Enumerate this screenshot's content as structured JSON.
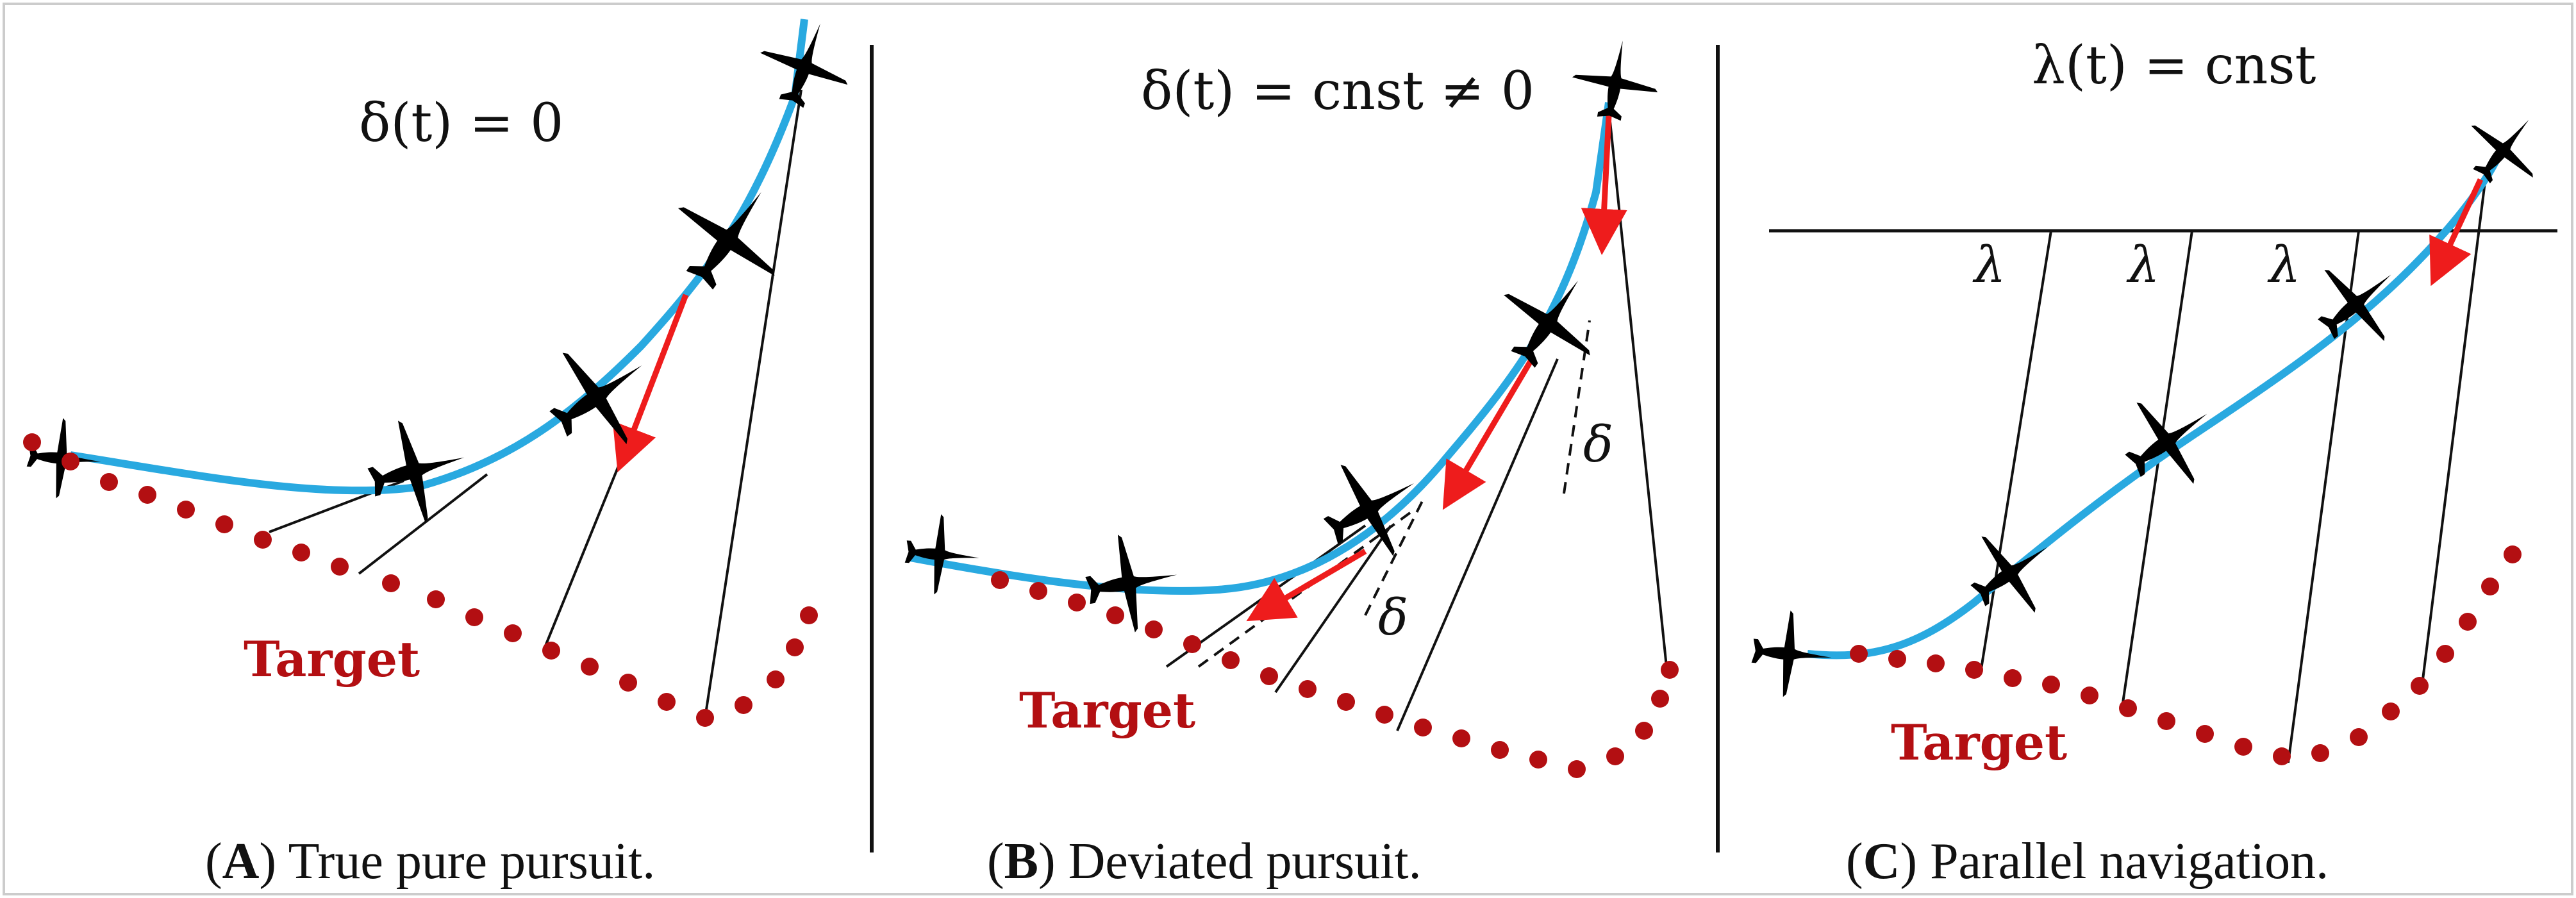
{
  "colors": {
    "trajectory": "#29a9e0",
    "target_dots": "#b30f12",
    "velocity_arrow": "#ee1c1c",
    "ink": "#111111",
    "divider": "#111111"
  },
  "icons": {
    "aircraft": "jet-silhouette-icon"
  },
  "panels": [
    {
      "id": "A",
      "equation": "δ(t) = 0",
      "target_label": "Target",
      "caption": {
        "letter": "A",
        "text": " True pure pursuit."
      },
      "angle_labels": []
    },
    {
      "id": "B",
      "equation": "δ(t) = cnst ≠ 0",
      "target_label": "Target",
      "caption": {
        "letter": "B",
        "text": " Deviated pursuit."
      },
      "angle_labels": [
        "δ",
        "δ"
      ]
    },
    {
      "id": "C",
      "equation": "λ(t) = cnst",
      "target_label": "Target",
      "caption": {
        "letter": "C",
        "text": " Parallel navigation."
      },
      "angle_labels": [
        "λ",
        "λ",
        "λ"
      ]
    }
  ]
}
